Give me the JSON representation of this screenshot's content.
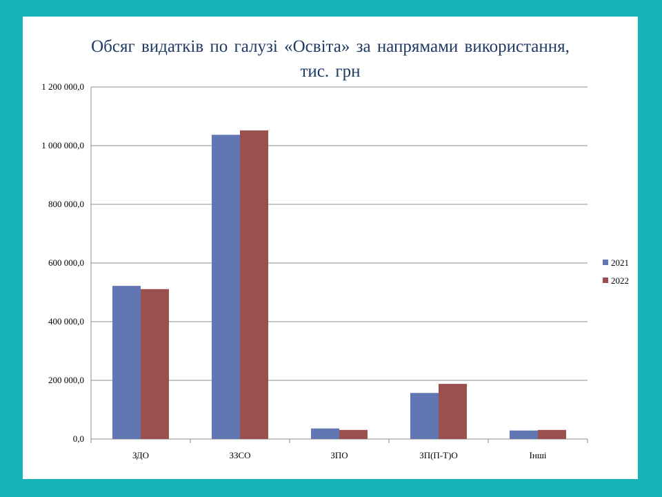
{
  "chart_data": {
    "type": "bar",
    "title_line1": "Обсяг видатків по галузі «Освіта» за напрямами використання,",
    "title_line2": "тис. грн",
    "categories": [
      "ЗДО",
      "ЗЗСО",
      "ЗПО",
      "ЗП(П-Т)О",
      "Інші"
    ],
    "series": [
      {
        "name": "2021",
        "color": "#6177b4",
        "values": [
          522000,
          1037000,
          36000,
          157000,
          29000
        ]
      },
      {
        "name": "2022",
        "color": "#9b5050",
        "values": [
          511000,
          1052000,
          31000,
          188000,
          31000
        ]
      }
    ],
    "ylim": [
      0,
      1200000
    ],
    "yticks": [
      "0,0",
      "200 000,0",
      "400 000,0",
      "600 000,0",
      "800 000,0",
      "1 000 000,0",
      "1 200 000,0"
    ],
    "grid": true,
    "legend": "right"
  }
}
